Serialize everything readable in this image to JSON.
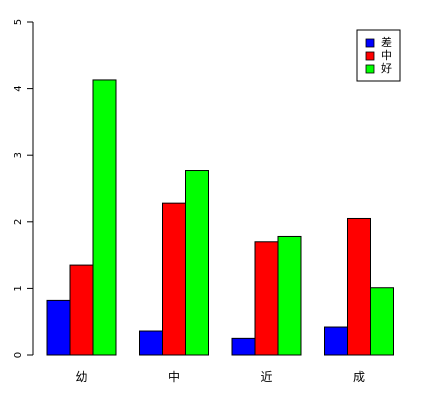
{
  "chart_data": {
    "type": "bar",
    "categories": [
      "幼",
      "中",
      "近",
      "成"
    ],
    "series": [
      {
        "name": "差",
        "color": "#0000ff",
        "values": [
          0.82,
          0.36,
          0.25,
          0.42
        ]
      },
      {
        "name": "中",
        "color": "#ff0000",
        "values": [
          1.35,
          2.28,
          1.7,
          2.05
        ]
      },
      {
        "name": "好",
        "color": "#00ff00",
        "values": [
          4.13,
          2.77,
          1.78,
          1.01
        ]
      }
    ],
    "ylim": [
      0,
      5
    ],
    "yticks": [
      "0",
      "1",
      "2",
      "3",
      "4",
      "5"
    ],
    "legend_position": "top-right",
    "grid": false,
    "title": "",
    "xlabel": "",
    "ylabel": ""
  }
}
